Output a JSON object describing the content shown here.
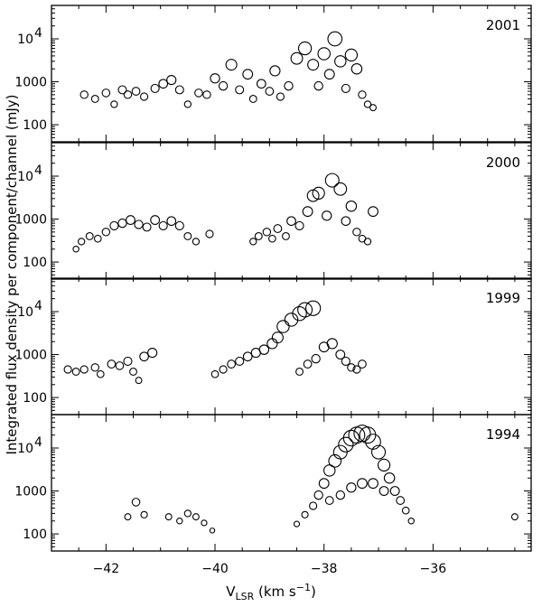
{
  "figure": {
    "xlabel_main": "V",
    "xlabel_sub": "LSR",
    "xlabel_unit_pre": " (km s",
    "xlabel_unit_sup": "−1",
    "xlabel_unit_post": ")",
    "ylabel": "Integrated flux density per component/channel (mJy)"
  },
  "chart_data": {
    "type": "scatter",
    "xlabel": "VLSR (km s−1)",
    "ylabel": "Integrated flux density per component/channel (mJy)",
    "xlim": [
      -43.0,
      -34.2
    ],
    "x_ticks": [
      -42,
      -40,
      -38,
      -36
    ],
    "x_tick_labels": [
      "−42",
      "−40",
      "−38",
      "−36"
    ],
    "ylim": [
      40,
      60000
    ],
    "y_scale": "log",
    "y_ticks": [
      100,
      1000,
      10000
    ],
    "y_tick_labels": [
      "100",
      "1000",
      "10^4"
    ],
    "marker": "open circle, size scales with flux",
    "panels": [
      {
        "year": "2001",
        "points": [
          [
            -42.4,
            500
          ],
          [
            -42.2,
            400
          ],
          [
            -42.0,
            550
          ],
          [
            -41.85,
            300
          ],
          [
            -41.7,
            650
          ],
          [
            -41.6,
            500
          ],
          [
            -41.45,
            600
          ],
          [
            -41.3,
            450
          ],
          [
            -41.1,
            700
          ],
          [
            -40.95,
            900
          ],
          [
            -40.8,
            1100
          ],
          [
            -40.65,
            650
          ],
          [
            -40.5,
            300
          ],
          [
            -40.3,
            550
          ],
          [
            -40.15,
            500
          ],
          [
            -40.0,
            1200
          ],
          [
            -39.85,
            800
          ],
          [
            -39.7,
            2500
          ],
          [
            -39.55,
            650
          ],
          [
            -39.4,
            1500
          ],
          [
            -39.3,
            400
          ],
          [
            -39.15,
            900
          ],
          [
            -39.0,
            600
          ],
          [
            -38.9,
            1800
          ],
          [
            -38.8,
            450
          ],
          [
            -38.65,
            800
          ],
          [
            -38.5,
            3500
          ],
          [
            -38.35,
            6000
          ],
          [
            -38.2,
            2500
          ],
          [
            -38.1,
            800
          ],
          [
            -38.0,
            4500
          ],
          [
            -37.9,
            1500
          ],
          [
            -37.8,
            10000
          ],
          [
            -37.7,
            3000
          ],
          [
            -37.6,
            700
          ],
          [
            -37.5,
            4200
          ],
          [
            -37.4,
            2000
          ],
          [
            -37.3,
            500
          ],
          [
            -37.2,
            300
          ],
          [
            -37.1,
            250
          ]
        ]
      },
      {
        "year": "2000",
        "points": [
          [
            -42.55,
            200
          ],
          [
            -42.45,
            300
          ],
          [
            -42.3,
            400
          ],
          [
            -42.15,
            350
          ],
          [
            -42.0,
            500
          ],
          [
            -41.85,
            700
          ],
          [
            -41.7,
            800
          ],
          [
            -41.55,
            950
          ],
          [
            -41.4,
            750
          ],
          [
            -41.25,
            650
          ],
          [
            -41.1,
            950
          ],
          [
            -40.95,
            700
          ],
          [
            -40.8,
            900
          ],
          [
            -40.65,
            700
          ],
          [
            -40.5,
            400
          ],
          [
            -40.35,
            300
          ],
          [
            -40.1,
            450
          ],
          [
            -39.3,
            300
          ],
          [
            -39.2,
            400
          ],
          [
            -39.05,
            500
          ],
          [
            -38.95,
            350
          ],
          [
            -38.85,
            600
          ],
          [
            -38.7,
            400
          ],
          [
            -38.6,
            900
          ],
          [
            -38.45,
            700
          ],
          [
            -38.3,
            1500
          ],
          [
            -38.2,
            3500
          ],
          [
            -38.1,
            4000
          ],
          [
            -37.95,
            1200
          ],
          [
            -37.85,
            8000
          ],
          [
            -37.7,
            5000
          ],
          [
            -37.6,
            900
          ],
          [
            -37.5,
            2000
          ],
          [
            -37.4,
            500
          ],
          [
            -37.3,
            350
          ],
          [
            -37.2,
            300
          ],
          [
            -37.1,
            1500
          ]
        ]
      },
      {
        "year": "1999",
        "points": [
          [
            -42.7,
            450
          ],
          [
            -42.55,
            400
          ],
          [
            -42.4,
            450
          ],
          [
            -42.2,
            500
          ],
          [
            -42.1,
            350
          ],
          [
            -41.9,
            600
          ],
          [
            -41.75,
            550
          ],
          [
            -41.6,
            700
          ],
          [
            -41.5,
            400
          ],
          [
            -41.4,
            250
          ],
          [
            -41.3,
            900
          ],
          [
            -41.15,
            1100
          ],
          [
            -40.0,
            350
          ],
          [
            -39.85,
            450
          ],
          [
            -39.7,
            600
          ],
          [
            -39.55,
            700
          ],
          [
            -39.4,
            900
          ],
          [
            -39.25,
            1100
          ],
          [
            -39.1,
            1300
          ],
          [
            -38.95,
            1800
          ],
          [
            -38.85,
            2500
          ],
          [
            -38.75,
            4500
          ],
          [
            -38.6,
            6500
          ],
          [
            -38.45,
            9000
          ],
          [
            -38.35,
            11000
          ],
          [
            -38.2,
            12000
          ],
          [
            -38.45,
            400
          ],
          [
            -38.3,
            600
          ],
          [
            -38.15,
            800
          ],
          [
            -38.0,
            1500
          ],
          [
            -37.85,
            1800
          ],
          [
            -37.7,
            1000
          ],
          [
            -37.6,
            700
          ],
          [
            -37.5,
            500
          ],
          [
            -37.4,
            450
          ],
          [
            -37.3,
            600
          ]
        ]
      },
      {
        "year": "1994",
        "points": [
          [
            -41.6,
            250
          ],
          [
            -41.45,
            550
          ],
          [
            -41.3,
            280
          ],
          [
            -40.85,
            250
          ],
          [
            -40.65,
            200
          ],
          [
            -40.5,
            300
          ],
          [
            -40.35,
            250
          ],
          [
            -40.2,
            180
          ],
          [
            -40.05,
            120
          ],
          [
            -38.5,
            170
          ],
          [
            -38.35,
            280
          ],
          [
            -38.2,
            450
          ],
          [
            -38.1,
            800
          ],
          [
            -38.0,
            1500
          ],
          [
            -37.9,
            3000
          ],
          [
            -37.8,
            5000
          ],
          [
            -37.7,
            8000
          ],
          [
            -37.6,
            12000
          ],
          [
            -37.5,
            17000
          ],
          [
            -37.4,
            20000
          ],
          [
            -37.3,
            22000
          ],
          [
            -37.2,
            20000
          ],
          [
            -37.1,
            14000
          ],
          [
            -37.0,
            8000
          ],
          [
            -36.9,
            4000
          ],
          [
            -36.8,
            2000
          ],
          [
            -36.7,
            1000
          ],
          [
            -36.6,
            600
          ],
          [
            -36.5,
            350
          ],
          [
            -36.4,
            200
          ],
          [
            -37.9,
            600
          ],
          [
            -37.7,
            800
          ],
          [
            -37.5,
            1200
          ],
          [
            -37.3,
            1500
          ],
          [
            -37.1,
            1500
          ],
          [
            -36.9,
            1000
          ],
          [
            -34.5,
            250
          ]
        ]
      }
    ]
  }
}
